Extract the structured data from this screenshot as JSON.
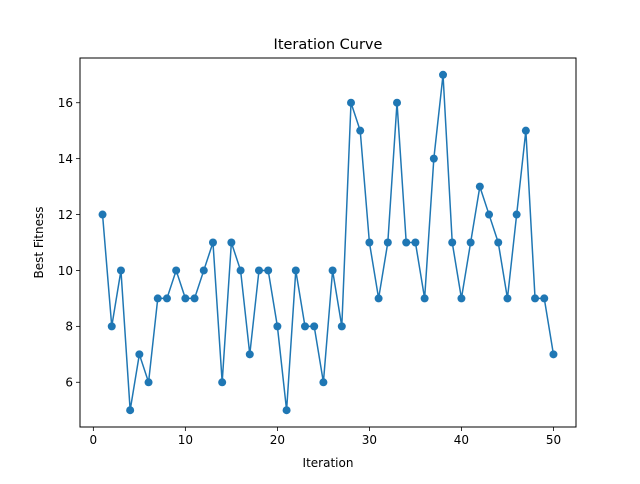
{
  "chart_data": {
    "type": "line",
    "title": "Iteration Curve",
    "xlabel": "Iteration",
    "ylabel": "Best Fitness",
    "xlim": [
      -1.45,
      52.45
    ],
    "ylim": [
      4.4,
      17.6
    ],
    "xticks": [
      0,
      10,
      20,
      30,
      40,
      50
    ],
    "yticks": [
      6,
      8,
      10,
      12,
      14,
      16
    ],
    "grid": false,
    "legend": "none",
    "series": [
      {
        "color": "#1f77b4",
        "marker": "circle",
        "x": [
          1,
          2,
          3,
          4,
          5,
          6,
          7,
          8,
          9,
          10,
          11,
          12,
          13,
          14,
          15,
          16,
          17,
          18,
          19,
          20,
          21,
          22,
          23,
          24,
          25,
          26,
          27,
          28,
          29,
          30,
          31,
          32,
          33,
          34,
          35,
          36,
          37,
          38,
          39,
          40,
          41,
          42,
          43,
          44,
          45,
          46,
          47,
          48,
          49,
          50
        ],
        "values": [
          12,
          8,
          10,
          5,
          7,
          6,
          9,
          9,
          10,
          9,
          9,
          10,
          11,
          6,
          11,
          10,
          7,
          10,
          10,
          8,
          5,
          10,
          8,
          8,
          6,
          10,
          8,
          16,
          15,
          11,
          9,
          11,
          16,
          11,
          11,
          9,
          14,
          17,
          11,
          9,
          11,
          13,
          12,
          11,
          9,
          12,
          15,
          9,
          9,
          7
        ]
      }
    ]
  }
}
